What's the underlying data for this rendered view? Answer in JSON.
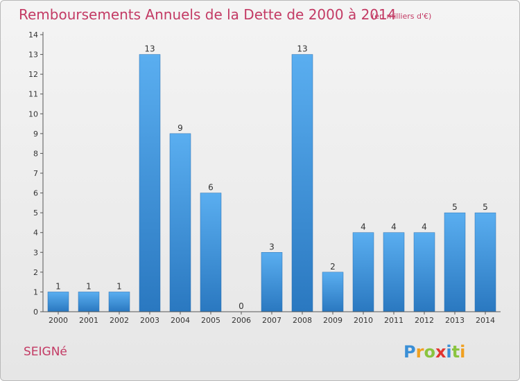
{
  "chart_data": {
    "type": "bar",
    "title": "Remboursements Annuels de la Dette de 2000 à 2014",
    "unit": "(en milliers d'€)",
    "categories": [
      "2000",
      "2001",
      "2002",
      "2003",
      "2004",
      "2005",
      "2006",
      "2007",
      "2008",
      "2009",
      "2010",
      "2011",
      "2012",
      "2013",
      "2014"
    ],
    "values": [
      1,
      1,
      1,
      13,
      9,
      6,
      0,
      3,
      13,
      2,
      4,
      4,
      4,
      5,
      5
    ],
    "ylim": [
      0,
      14
    ],
    "yticks": [
      0,
      1,
      2,
      3,
      4,
      5,
      6,
      7,
      8,
      9,
      10,
      11,
      12,
      13,
      14
    ],
    "grid": false,
    "bar_color": "#3a8fd6"
  },
  "footer": {
    "place": "SEIGNé",
    "logo_letters": [
      "P",
      "r",
      "o",
      "x",
      "i",
      "t",
      "i"
    ],
    "logo_colors": [
      "#3a8fd6",
      "#f0a020",
      "#8ac43f",
      "#e3342f",
      "#3a8fd6",
      "#8ac43f",
      "#f0a020"
    ]
  }
}
